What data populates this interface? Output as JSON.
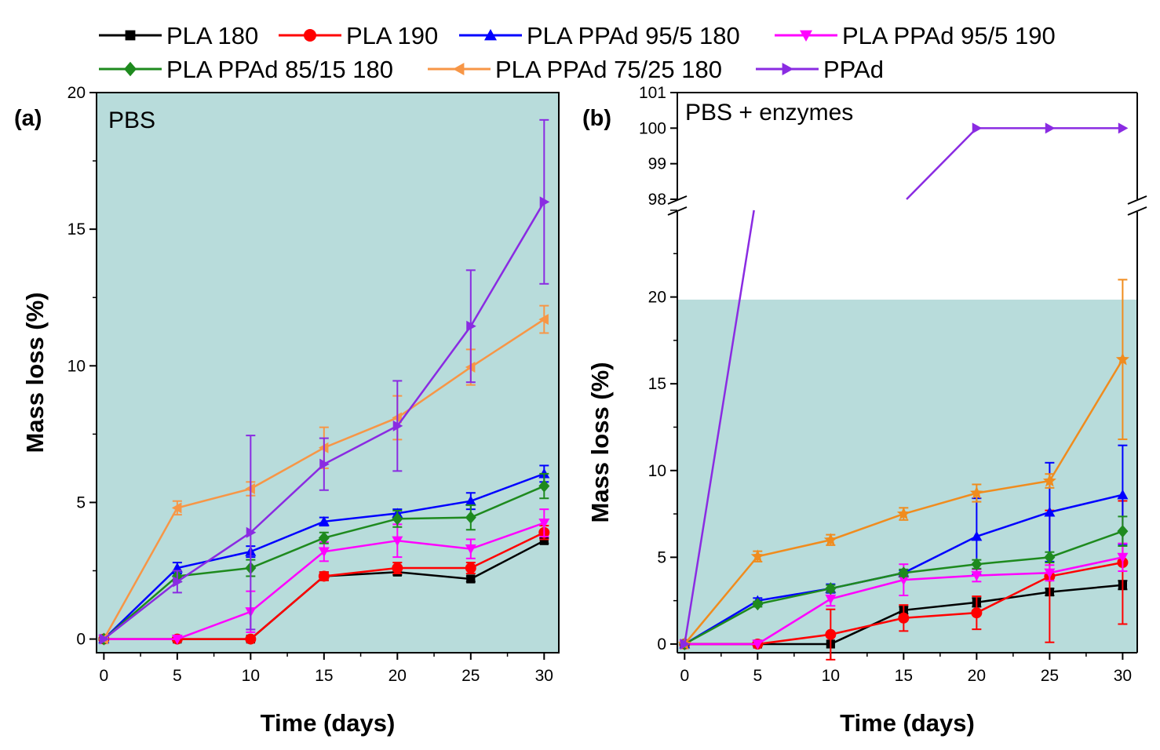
{
  "legend": [
    {
      "name": "PLA 180",
      "color": "#000000",
      "marker": "square"
    },
    {
      "name": "PLA 190",
      "color": "#ff0000",
      "marker": "circle"
    },
    {
      "name": "PLA PPAd 95/5 180",
      "color": "#0000ff",
      "marker": "triangle-up"
    },
    {
      "name": "PLA PPAd 95/5 190",
      "color": "#ff00ff",
      "marker": "triangle-down"
    },
    {
      "name": "PLA PPAd 85/15 180",
      "color": "#1e8a1e",
      "marker": "diamond"
    },
    {
      "name": "PLA PPAd 75/25 180",
      "color": "#f79646",
      "marker": "triangle-left"
    },
    {
      "name": "PPAd",
      "color": "#8a2be2",
      "marker": "triangle-right"
    }
  ],
  "chart_data": [
    {
      "type": "line",
      "panel_label": "(a)",
      "condition_label": "PBS",
      "xlabel": "Time (days)",
      "ylabel": "Mass loss (%)",
      "xlim": [
        -0.5,
        31
      ],
      "ylim": [
        -0.5,
        20
      ],
      "xticks": [
        0,
        5,
        10,
        15,
        20,
        25,
        30
      ],
      "yticks": [
        0,
        5,
        10,
        15,
        20
      ],
      "background": "#b8dcdb",
      "x": [
        0,
        5,
        10,
        15,
        20,
        25,
        30
      ],
      "series": [
        {
          "name": "PLA 180",
          "color": "#000000",
          "marker": "square",
          "values": [
            0,
            0,
            0,
            2.3,
            2.45,
            2.2,
            3.6
          ],
          "errors": [
            0,
            0,
            0,
            0.15,
            0.1,
            0.1,
            0.1
          ]
        },
        {
          "name": "PLA 190",
          "color": "#ff0000",
          "marker": "circle",
          "values": [
            0,
            0,
            0,
            2.3,
            2.6,
            2.6,
            3.9
          ],
          "errors": [
            0,
            0,
            0,
            0.15,
            0.2,
            0.2,
            0.25
          ]
        },
        {
          "name": "PLA PPAd 95/5 180",
          "color": "#0000ff",
          "marker": "triangle-up",
          "values": [
            0,
            2.6,
            3.2,
            4.3,
            4.6,
            5.05,
            6.05
          ],
          "errors": [
            0,
            0.2,
            0.2,
            0.15,
            0.15,
            0.3,
            0.3
          ]
        },
        {
          "name": "PLA PPAd 95/5 190",
          "color": "#ff00ff",
          "marker": "triangle-down",
          "values": [
            0,
            0,
            1.0,
            3.2,
            3.6,
            3.3,
            4.25
          ],
          "errors": [
            0,
            0,
            0.75,
            0.35,
            0.6,
            0.35,
            0.5
          ]
        },
        {
          "name": "PLA PPAd 85/15 180",
          "color": "#1e8a1e",
          "marker": "diamond",
          "values": [
            0,
            2.3,
            2.6,
            3.7,
            4.4,
            4.45,
            5.6
          ],
          "errors": [
            0,
            0.2,
            0.3,
            0.2,
            0.3,
            0.45,
            0.45
          ]
        },
        {
          "name": "PLA PPAd 75/25 180",
          "color": "#f79646",
          "marker": "triangle-left",
          "values": [
            0,
            4.8,
            5.5,
            7.0,
            8.1,
            9.95,
            11.7
          ],
          "errors": [
            0,
            0.25,
            0.25,
            0.75,
            0.8,
            0.65,
            0.5
          ]
        },
        {
          "name": "PPAd",
          "color": "#8a2be2",
          "marker": "triangle-right",
          "values": [
            0,
            2.1,
            3.9,
            6.4,
            7.8,
            11.45,
            16.0
          ],
          "errors": [
            0,
            0.4,
            3.55,
            0.95,
            1.65,
            2.05,
            3.0
          ]
        }
      ]
    },
    {
      "type": "line",
      "panel_label": "(b)",
      "condition_label": "PBS + enzymes",
      "xlabel": "Time (days)",
      "ylabel": "Mass loss (%)",
      "xlim": [
        -0.5,
        31
      ],
      "ylim_lower": [
        -0.5,
        25
      ],
      "ylim_upper": [
        98,
        101
      ],
      "axis_break": true,
      "xticks": [
        0,
        5,
        10,
        15,
        20,
        25,
        30
      ],
      "yticks_lower": [
        0,
        5,
        10,
        15,
        20
      ],
      "yticks_upper": [
        98,
        99,
        100,
        101
      ],
      "shaded_region": [
        -0.5,
        19.85
      ],
      "background": "#b8dcdb",
      "x": [
        0,
        5,
        10,
        15,
        20,
        25,
        30
      ],
      "series": [
        {
          "name": "PLA 180",
          "color": "#000000",
          "marker": "square",
          "values": [
            0,
            0,
            0,
            1.95,
            2.4,
            3.0,
            3.4
          ],
          "errors": [
            0,
            0,
            0,
            0.2,
            0.25,
            0.2,
            0.25
          ]
        },
        {
          "name": "PLA 190",
          "color": "#ff0000",
          "marker": "circle",
          "values": [
            0,
            0,
            0.55,
            1.5,
            1.8,
            3.9,
            4.7
          ],
          "errors": [
            0,
            0,
            1.45,
            0.75,
            0.95,
            3.8,
            3.55
          ]
        },
        {
          "name": "PLA PPAd 95/5 180",
          "color": "#0000ff",
          "marker": "triangle-up",
          "values": [
            0,
            2.5,
            3.2,
            4.1,
            6.2,
            7.6,
            8.6
          ],
          "errors": [
            0,
            0.15,
            0.25,
            0.15,
            2.2,
            2.85,
            2.85
          ]
        },
        {
          "name": "PLA PPAd 95/5 190",
          "color": "#ff00ff",
          "marker": "triangle-down",
          "values": [
            0,
            0,
            2.6,
            3.7,
            3.95,
            4.1,
            5.0
          ],
          "errors": [
            0,
            0,
            0.4,
            0.9,
            0.35,
            0.45,
            0.8
          ]
        },
        {
          "name": "PLA PPAd 85/15 180",
          "color": "#1e8a1e",
          "marker": "diamond",
          "values": [
            0,
            2.3,
            3.2,
            4.1,
            4.6,
            5.0,
            6.5
          ],
          "errors": [
            0,
            0.15,
            0.2,
            0.2,
            0.25,
            0.3,
            0.85
          ]
        },
        {
          "name": "PLA PPAd 75/25 180",
          "color": "#f79646",
          "marker": "triangle-left",
          "values": [
            0,
            5.05,
            6.0,
            7.5,
            8.7,
            9.4,
            16.4
          ],
          "errors": [
            0,
            0.3,
            0.3,
            0.35,
            0.5,
            0.4,
            4.6
          ]
        },
        {
          "name": "PPAd",
          "color": "#8a2be2",
          "marker": "triangle-right",
          "values": [
            0,
            null,
            null,
            null,
            100,
            100,
            100
          ],
          "errors": [
            0,
            0,
            0,
            0,
            0,
            0,
            0
          ]
        }
      ]
    }
  ]
}
